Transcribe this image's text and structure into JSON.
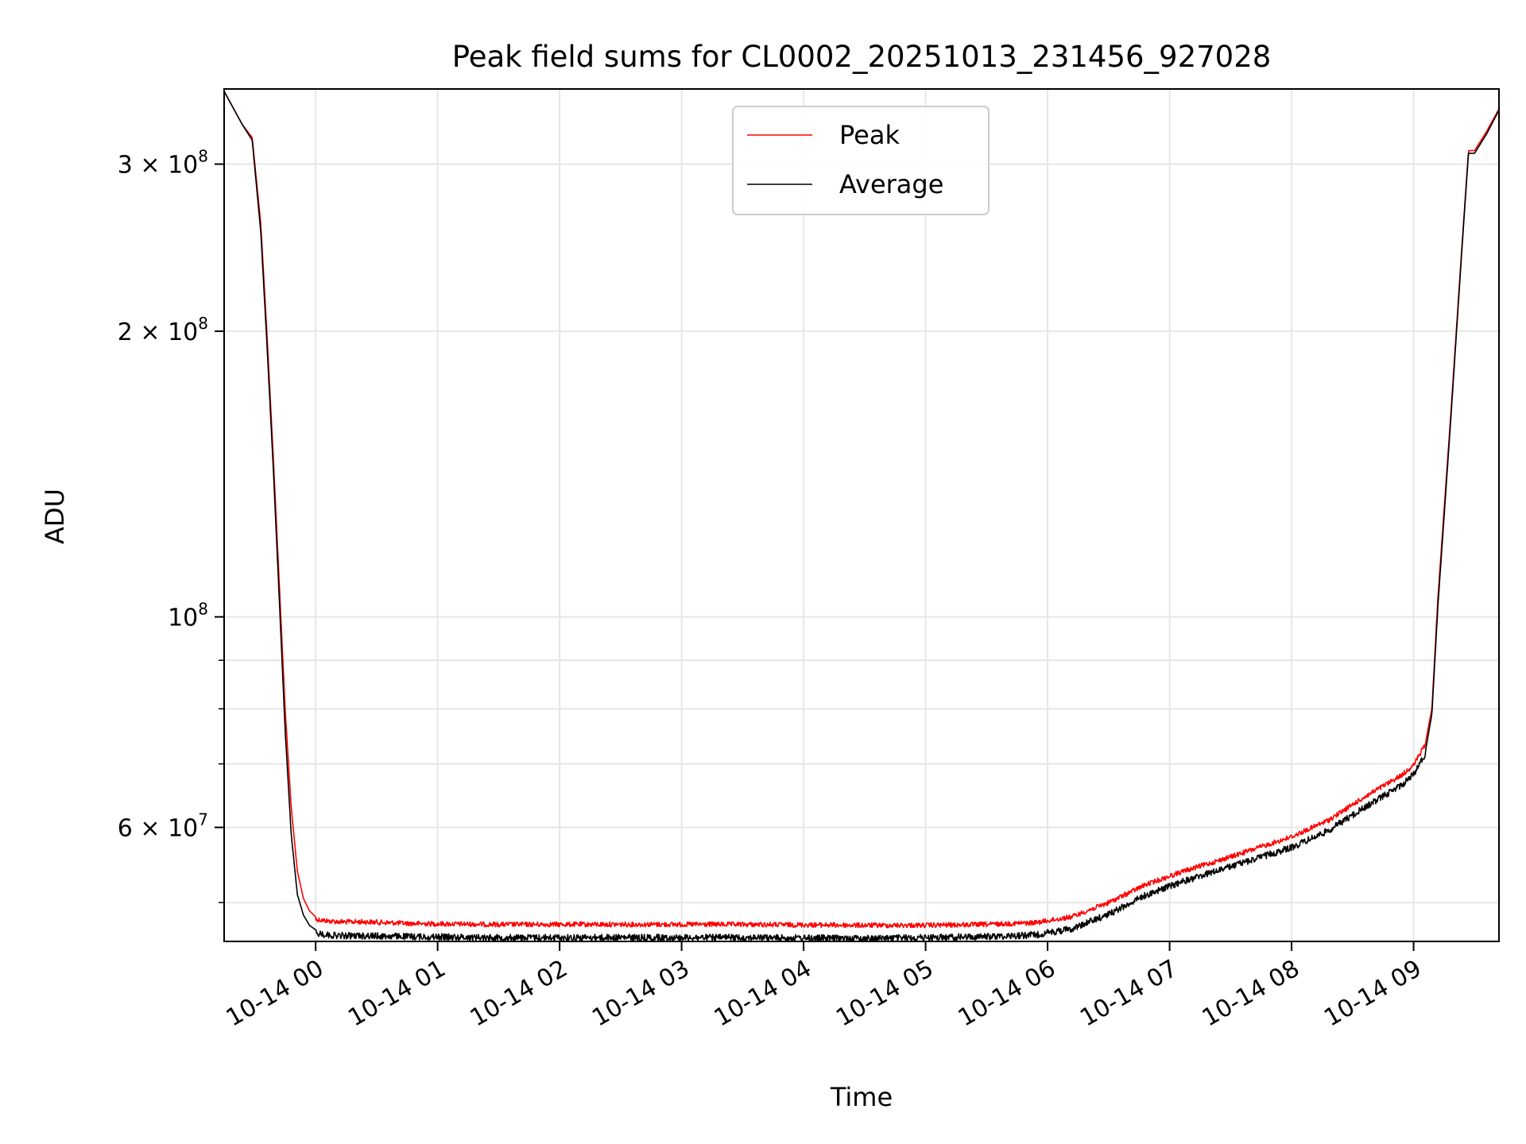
{
  "chart_data": {
    "type": "line",
    "title": "Peak field sums for CL0002_20251013_231456_927028",
    "xlabel": "Time",
    "ylabel": "ADU",
    "yscale": "log",
    "ylim": [
      45500000,
      360000000
    ],
    "xlim_hours": [
      -0.75,
      9.7
    ],
    "grid": true,
    "legend_position": "top-center",
    "x_ticks": [
      {
        "hour": 0,
        "label": "10-14 00"
      },
      {
        "hour": 1,
        "label": "10-14 01"
      },
      {
        "hour": 2,
        "label": "10-14 02"
      },
      {
        "hour": 3,
        "label": "10-14 03"
      },
      {
        "hour": 4,
        "label": "10-14 04"
      },
      {
        "hour": 5,
        "label": "10-14 05"
      },
      {
        "hour": 6,
        "label": "10-14 06"
      },
      {
        "hour": 7,
        "label": "10-14 07"
      },
      {
        "hour": 8,
        "label": "10-14 08"
      },
      {
        "hour": 9,
        "label": "10-14 09"
      }
    ],
    "y_major_ticks": [
      {
        "value": 300000000,
        "mantissa": "3 × 10",
        "exp": "8"
      },
      {
        "value": 200000000,
        "mantissa": "2 × 10",
        "exp": "8"
      },
      {
        "value": 100000000,
        "mantissa": "10",
        "exp": "8"
      },
      {
        "value": 60000000,
        "mantissa": "6 × 10",
        "exp": "7"
      }
    ],
    "y_minor_ticks": [
      50000000,
      70000000,
      80000000,
      90000000
    ],
    "series": [
      {
        "name": "Peak",
        "color": "#ff0000",
        "hours": [
          -0.75,
          -0.6,
          -0.52,
          -0.45,
          -0.4,
          -0.35,
          -0.3,
          -0.25,
          -0.2,
          -0.15,
          -0.1,
          -0.05,
          0.0,
          0.1,
          0.2,
          0.4,
          0.8,
          1.5,
          2.5,
          3.5,
          4.5,
          5.0,
          5.5,
          5.9,
          6.2,
          6.5,
          6.8,
          7.1,
          7.5,
          8.0,
          8.3,
          8.6,
          8.9,
          9.0,
          9.1,
          9.15,
          9.2,
          9.3,
          9.4,
          9.45,
          9.5,
          9.6,
          9.7
        ],
        "values": [
          358000000,
          330000000,
          320000000,
          260000000,
          200000000,
          150000000,
          110000000,
          80000000,
          63000000,
          54000000,
          50500000,
          49000000,
          48300000,
          48100000,
          48000000,
          48000000,
          47800000,
          47700000,
          47700000,
          47700000,
          47600000,
          47600000,
          47700000,
          47900000,
          48600000,
          50300000,
          52500000,
          54200000,
          56200000,
          59000000,
          61400000,
          65000000,
          68500000,
          70200000,
          74000000,
          80000000,
          105000000,
          160000000,
          250000000,
          310000000,
          310000000,
          325000000,
          343000000
        ]
      },
      {
        "name": "Average",
        "color": "#000000",
        "hours": [
          -0.75,
          -0.6,
          -0.52,
          -0.45,
          -0.4,
          -0.35,
          -0.3,
          -0.25,
          -0.2,
          -0.15,
          -0.1,
          -0.05,
          0.0,
          0.1,
          0.2,
          0.4,
          0.8,
          1.5,
          2.5,
          3.5,
          4.5,
          5.0,
          5.5,
          5.9,
          6.2,
          6.5,
          6.8,
          7.1,
          7.5,
          8.0,
          8.3,
          8.6,
          8.9,
          9.0,
          9.1,
          9.15,
          9.2,
          9.3,
          9.4,
          9.45,
          9.5,
          9.6,
          9.7
        ],
        "values": [
          358000000,
          330000000,
          318000000,
          255000000,
          195000000,
          146000000,
          106000000,
          76000000,
          59000000,
          51000000,
          48500000,
          47300000,
          46800000,
          46600000,
          46500000,
          46500000,
          46400000,
          46300000,
          46300000,
          46300000,
          46200000,
          46300000,
          46400000,
          46600000,
          47300000,
          49000000,
          51300000,
          53000000,
          55000000,
          57600000,
          60000000,
          63500000,
          67000000,
          68800000,
          72500000,
          79000000,
          103000000,
          158000000,
          248000000,
          308000000,
          308000000,
          323000000,
          342000000
        ]
      }
    ]
  }
}
